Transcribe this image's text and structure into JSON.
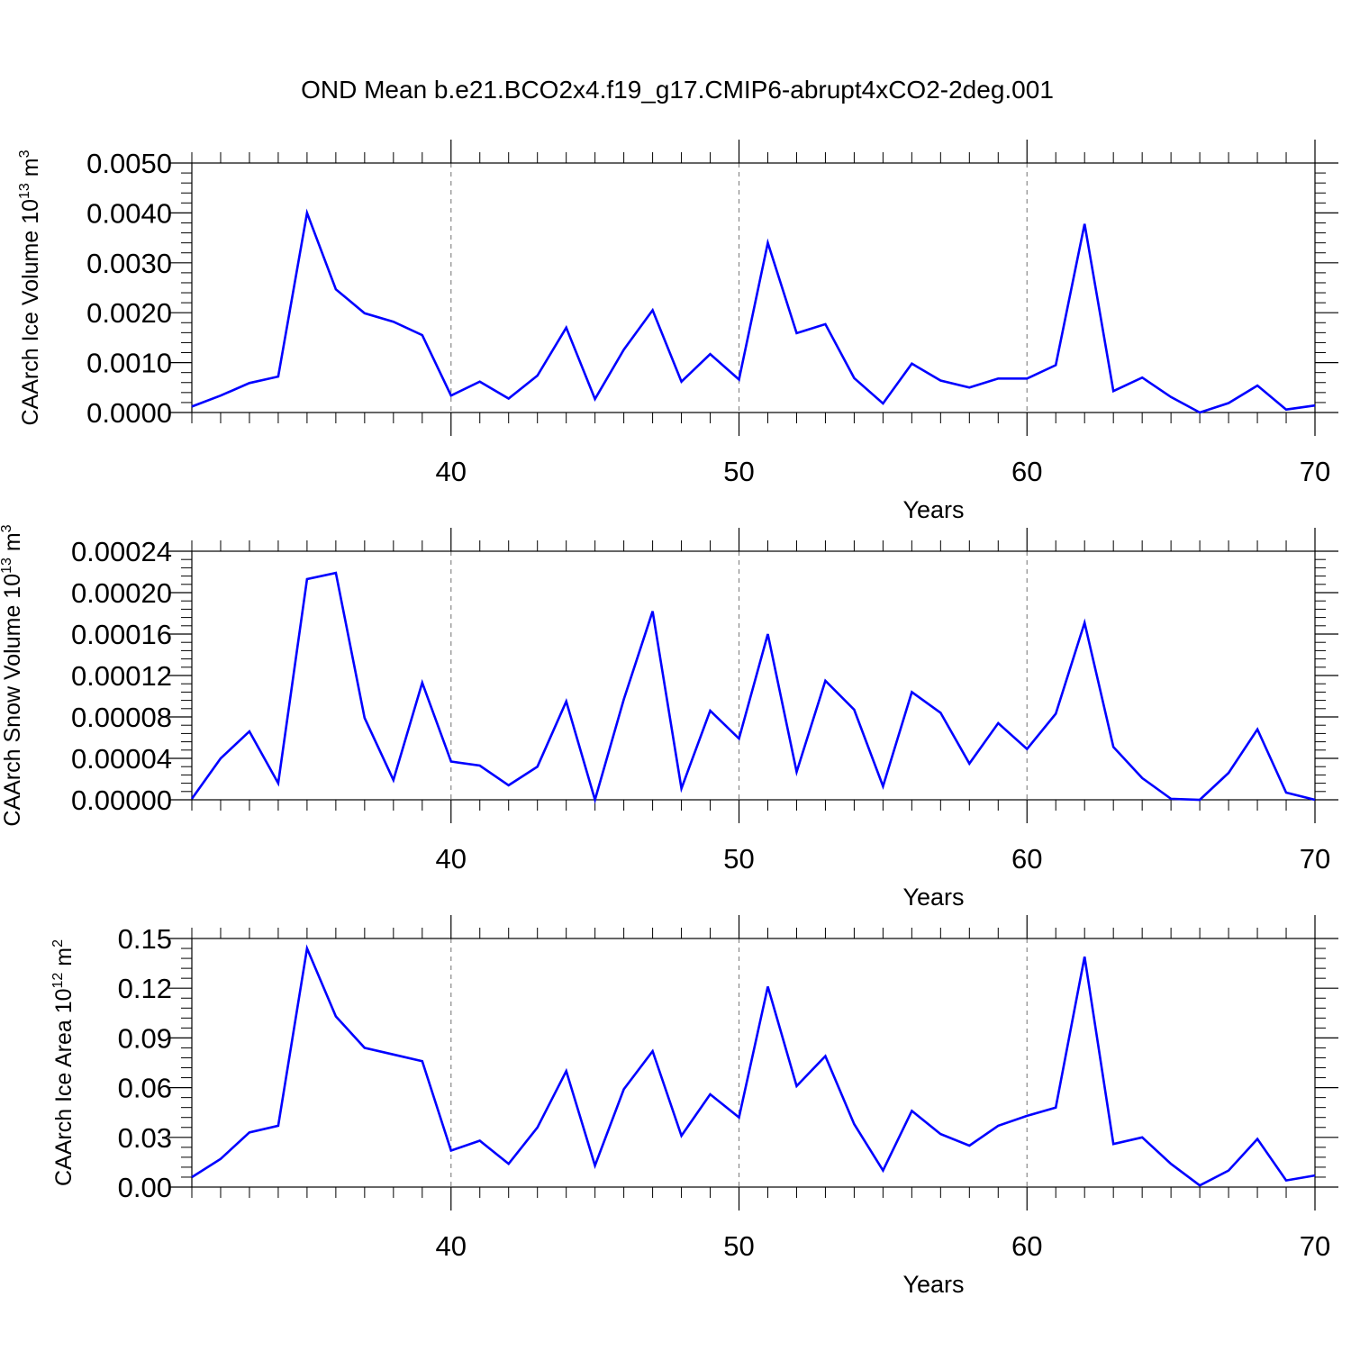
{
  "figure_title": "OND Mean b.e21.BCO2x4.f19_g17.CMIP6-abrupt4xCO2-2deg.001",
  "colors": {
    "series": "#0000ff",
    "axis": "#000000",
    "grid": "#888888"
  },
  "chart_data": [
    {
      "type": "line",
      "ylabel_text": "CAArch Ice Volume 10",
      "ylabel_exp": "13",
      "ylabel_unit": " m",
      "ylabel_unit_exp": "3",
      "xlabel": "Years",
      "xlim": [
        31,
        70
      ],
      "ylim": [
        0,
        0.005
      ],
      "x_ticks": [
        40,
        50,
        60,
        70
      ],
      "x_tick_labels": [
        "40",
        "50",
        "60",
        "70"
      ],
      "y_ticks": [
        0,
        0.001,
        0.002,
        0.003,
        0.004,
        0.005
      ],
      "y_tick_labels": [
        "0.0000",
        "0.0010",
        "0.0020",
        "0.0030",
        "0.0040",
        "0.0050"
      ],
      "grid": "vertical dashed at major x ticks",
      "series": [
        {
          "x": [
            31,
            32,
            33,
            34,
            35,
            36,
            37,
            38,
            39,
            40,
            41,
            42,
            43,
            44,
            45,
            46,
            47,
            48,
            49,
            50,
            51,
            52,
            53,
            54,
            55,
            56,
            57,
            58,
            59,
            60,
            61,
            62,
            63,
            64,
            65,
            66,
            67,
            68,
            69,
            70
          ],
          "values": [
            0.00012,
            0.00034,
            0.00059,
            0.00072,
            0.004,
            0.00247,
            0.00199,
            0.00182,
            0.00155,
            0.00034,
            0.00062,
            0.00028,
            0.00074,
            0.0017,
            0.00027,
            0.00126,
            0.00205,
            0.00062,
            0.00117,
            0.00066,
            0.0034,
            0.00159,
            0.00177,
            0.00069,
            0.00018,
            0.00098,
            0.00064,
            0.0005,
            0.00068,
            0.00068,
            0.00095,
            0.00378,
            0.00043,
            0.0007,
            0.00031,
            0.0,
            0.00019,
            0.00054,
            6e-05,
            0.00014
          ]
        }
      ]
    },
    {
      "type": "line",
      "ylabel_text": "CAArch Snow Volume 10",
      "ylabel_exp": "13",
      "ylabel_unit": " m",
      "ylabel_unit_exp": "3",
      "xlabel": "Years",
      "xlim": [
        31,
        70
      ],
      "ylim": [
        0,
        0.00024
      ],
      "x_ticks": [
        40,
        50,
        60,
        70
      ],
      "x_tick_labels": [
        "40",
        "50",
        "60",
        "70"
      ],
      "y_ticks": [
        0,
        4e-05,
        8e-05,
        0.00012,
        0.00016,
        0.0002,
        0.00024
      ],
      "y_tick_labels": [
        "0.00000",
        "0.00004",
        "0.00008",
        "0.00012",
        "0.00016",
        "0.00020",
        "0.00024"
      ],
      "grid": "vertical dashed at major x ticks",
      "series": [
        {
          "x": [
            31,
            32,
            33,
            34,
            35,
            36,
            37,
            38,
            39,
            40,
            41,
            42,
            43,
            44,
            45,
            46,
            47,
            48,
            49,
            50,
            51,
            52,
            53,
            54,
            55,
            56,
            57,
            58,
            59,
            60,
            61,
            62,
            63,
            64,
            65,
            66,
            67,
            68,
            69,
            70
          ],
          "values": [
            1e-06,
            4e-05,
            6.6e-05,
            1.6e-05,
            0.000213,
            0.000219,
            7.9e-05,
            1.9e-05,
            0.000113,
            3.7e-05,
            3.3e-05,
            1.4e-05,
            3.2e-05,
            9.5e-05,
            0.0,
            9.7e-05,
            0.000182,
            1.1e-05,
            8.6e-05,
            5.9e-05,
            0.00016,
            2.7e-05,
            0.000115,
            8.7e-05,
            1.3e-05,
            0.000104,
            8.4e-05,
            3.5e-05,
            7.4e-05,
            4.9e-05,
            8.3e-05,
            0.000171,
            5.1e-05,
            2.1e-05,
            1e-06,
            0.0,
            2.6e-05,
            6.8e-05,
            7e-06,
            0.0
          ]
        }
      ]
    },
    {
      "type": "line",
      "ylabel_text": "CAArch Ice Area 10",
      "ylabel_exp": "12",
      "ylabel_unit": " m",
      "ylabel_unit_exp": "2",
      "xlabel": "Years",
      "xlim": [
        31,
        70
      ],
      "ylim": [
        0,
        0.15
      ],
      "x_ticks": [
        40,
        50,
        60,
        70
      ],
      "x_tick_labels": [
        "40",
        "50",
        "60",
        "70"
      ],
      "y_ticks": [
        0,
        0.03,
        0.06,
        0.09,
        0.12,
        0.15
      ],
      "y_tick_labels": [
        "0.00",
        "0.03",
        "0.06",
        "0.09",
        "0.12",
        "0.15"
      ],
      "grid": "vertical dashed at major x ticks",
      "series": [
        {
          "x": [
            31,
            32,
            33,
            34,
            35,
            36,
            37,
            38,
            39,
            40,
            41,
            42,
            43,
            44,
            45,
            46,
            47,
            48,
            49,
            50,
            51,
            52,
            53,
            54,
            55,
            56,
            57,
            58,
            59,
            60,
            61,
            62,
            63,
            64,
            65,
            66,
            67,
            68,
            69,
            70
          ],
          "values": [
            0.006,
            0.017,
            0.033,
            0.037,
            0.144,
            0.103,
            0.084,
            0.08,
            0.076,
            0.022,
            0.028,
            0.014,
            0.036,
            0.07,
            0.013,
            0.059,
            0.082,
            0.031,
            0.056,
            0.042,
            0.121,
            0.061,
            0.079,
            0.038,
            0.01,
            0.046,
            0.032,
            0.025,
            0.037,
            0.043,
            0.048,
            0.139,
            0.026,
            0.03,
            0.014,
            0.001,
            0.01,
            0.029,
            0.004,
            0.007
          ]
        }
      ]
    }
  ]
}
